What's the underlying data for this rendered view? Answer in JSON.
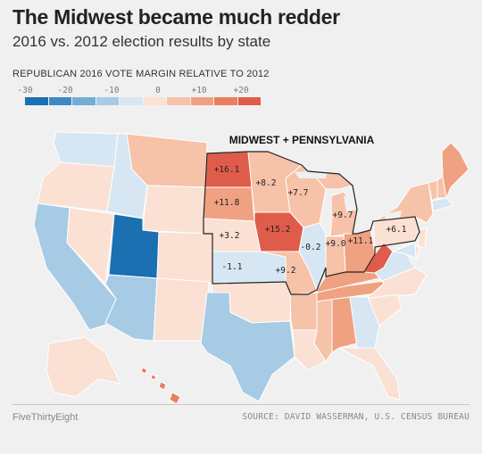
{
  "title": "The Midwest became much redder",
  "subtitle": "2016 vs. 2012 election results by state",
  "legend": {
    "title": "REPUBLICAN 2016 VOTE MARGIN RELATIVE TO 2012",
    "ticks": [
      "-30",
      "-20",
      "-10",
      "0",
      "+10",
      "+20"
    ],
    "colors": [
      "#1a70b0",
      "#3b8ac4",
      "#74acd6",
      "#a7cbe5",
      "#d6e6f2",
      "#fae1d4",
      "#f6c2a8",
      "#f0a181",
      "#ea7f60",
      "#e05c4a"
    ]
  },
  "region_label": "MIDWEST + PENNSYLVANIA",
  "states": [
    {
      "name": "Washington",
      "color": "#d6e6f2"
    },
    {
      "name": "Oregon",
      "color": "#fae1d4"
    },
    {
      "name": "California",
      "color": "#a7cbe5"
    },
    {
      "name": "Nevada",
      "color": "#fae1d4"
    },
    {
      "name": "Idaho",
      "color": "#d6e6f2"
    },
    {
      "name": "Montana",
      "color": "#f6c2a8"
    },
    {
      "name": "Wyoming",
      "color": "#fae1d4"
    },
    {
      "name": "Utah",
      "color": "#1a70b0"
    },
    {
      "name": "Arizona",
      "color": "#a7cbe5"
    },
    {
      "name": "Colorado",
      "color": "#fae1d4"
    },
    {
      "name": "New Mexico",
      "color": "#fae1d4"
    },
    {
      "name": "Texas",
      "color": "#a7cbe5"
    },
    {
      "name": "Oklahoma",
      "color": "#fae1d4"
    },
    {
      "name": "North Dakota",
      "color": "#e05c4a",
      "value": "+16.1"
    },
    {
      "name": "South Dakota",
      "color": "#f0a181",
      "value": "+11.8"
    },
    {
      "name": "Nebraska",
      "color": "#fae1d4",
      "value": "+3.2"
    },
    {
      "name": "Kansas",
      "color": "#d6e6f2",
      "value": "-1.1"
    },
    {
      "name": "Minnesota",
      "color": "#f6c2a8",
      "value": "+8.2"
    },
    {
      "name": "Iowa",
      "color": "#e05c4a",
      "value": "+15.2"
    },
    {
      "name": "Missouri",
      "color": "#f6c2a8",
      "value": "+9.2"
    },
    {
      "name": "Wisconsin",
      "color": "#f6c2a8",
      "value": "+7.7"
    },
    {
      "name": "Illinois",
      "color": "#d6e6f2",
      "value": "-0.2"
    },
    {
      "name": "Michigan",
      "color": "#f6c2a8",
      "value": "+9.7"
    },
    {
      "name": "Indiana",
      "color": "#f6c2a8",
      "value": "+9.0"
    },
    {
      "name": "Ohio",
      "color": "#f0a181",
      "value": "+11.1"
    },
    {
      "name": "Pennsylvania",
      "color": "#fae1d4",
      "value": "+6.1"
    },
    {
      "name": "Arkansas",
      "color": "#f6c2a8"
    },
    {
      "name": "Louisiana",
      "color": "#fae1d4"
    },
    {
      "name": "Mississippi",
      "color": "#f6c2a8"
    },
    {
      "name": "Alabama",
      "color": "#f0a181"
    },
    {
      "name": "Tennessee",
      "color": "#f0a181"
    },
    {
      "name": "Kentucky",
      "color": "#f0a181"
    },
    {
      "name": "West Virginia",
      "color": "#e05c4a"
    },
    {
      "name": "Virginia",
      "color": "#d6e6f2"
    },
    {
      "name": "North Carolina",
      "color": "#fae1d4"
    },
    {
      "name": "South Carolina",
      "color": "#fae1d4"
    },
    {
      "name": "Georgia",
      "color": "#d6e6f2"
    },
    {
      "name": "Florida",
      "color": "#fae1d4"
    },
    {
      "name": "New York",
      "color": "#f6c2a8"
    },
    {
      "name": "Maine",
      "color": "#f0a181"
    },
    {
      "name": "New Hampshire",
      "color": "#f6c2a8"
    },
    {
      "name": "Vermont",
      "color": "#f6c2a8"
    },
    {
      "name": "Massachusetts",
      "color": "#d6e6f2"
    },
    {
      "name": "New Jersey",
      "color": "#fae1d4"
    },
    {
      "name": "Maryland",
      "color": "#d6e6f2"
    },
    {
      "name": "Delaware",
      "color": "#fae1d4"
    },
    {
      "name": "Alaska",
      "color": "#fae1d4"
    },
    {
      "name": "Hawaii",
      "color": "#ea7f60"
    }
  ],
  "footer": {
    "brand": "FiveThirtyEight",
    "source": "SOURCE: DAVID WASSERMAN, U.S. CENSUS BUREAU"
  }
}
